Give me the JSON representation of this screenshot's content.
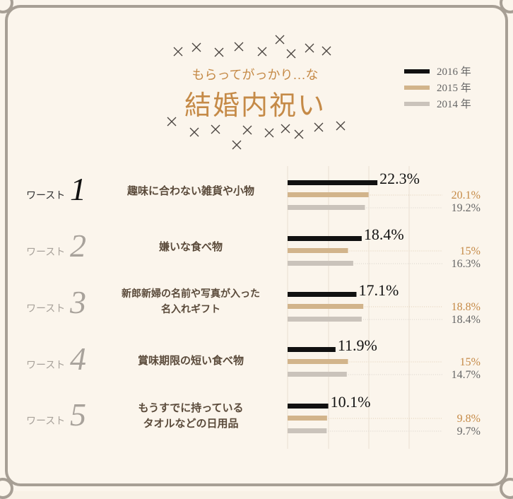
{
  "title": {
    "subtitle": "もらってがっかり…な",
    "main": "結婚内祝い"
  },
  "legend": [
    {
      "label": "2016 年",
      "color": "#111111"
    },
    {
      "label": "2015 年",
      "color": "#d2b48b"
    },
    {
      "label": "2014 年",
      "color": "#cac3bb"
    }
  ],
  "rank_prefix": "ワースト",
  "rows": [
    {
      "rank": "1",
      "label_lines": [
        "趣味に合わない雑貨や小物"
      ]
    },
    {
      "rank": "2",
      "label_lines": [
        "嫌いな食べ物"
      ]
    },
    {
      "rank": "3",
      "label_lines": [
        "新郎新婦の名前や写真が入った",
        "名入れギフト"
      ]
    },
    {
      "rank": "4",
      "label_lines": [
        "賞味期限の短い食べ物"
      ]
    },
    {
      "rank": "5",
      "label_lines": [
        "もうすでに持っている",
        "タオルなどの日用品"
      ]
    }
  ],
  "chart_data": {
    "type": "bar",
    "orientation": "horizontal",
    "categories": [
      "趣味に合わない雑貨や小物",
      "嫌いな食べ物",
      "新郎新婦の名前や写真が入った名入れギフト",
      "賞味期限の短い食べ物",
      "もうすでに持っているタオルなどの日用品"
    ],
    "series": [
      {
        "name": "2016 年",
        "values": [
          22.3,
          18.4,
          17.1,
          11.9,
          10.1
        ],
        "labels": [
          "22.3%",
          "18.4%",
          "17.1%",
          "11.9%",
          "10.1%"
        ],
        "color": "#111111"
      },
      {
        "name": "2015 年",
        "values": [
          20.1,
          15,
          18.8,
          15,
          9.8
        ],
        "labels": [
          "20.1%",
          "15%",
          "18.8%",
          "15%",
          "9.8%"
        ],
        "color": "#d2b48b"
      },
      {
        "name": "2014 年",
        "values": [
          19.2,
          16.3,
          18.4,
          14.7,
          9.7
        ],
        "labels": [
          "19.2%",
          "16.3%",
          "18.4%",
          "14.7%",
          "9.7%"
        ],
        "color": "#cac3bb"
      }
    ],
    "xlim": [
      0,
      25
    ],
    "legend_position": "top-right"
  }
}
